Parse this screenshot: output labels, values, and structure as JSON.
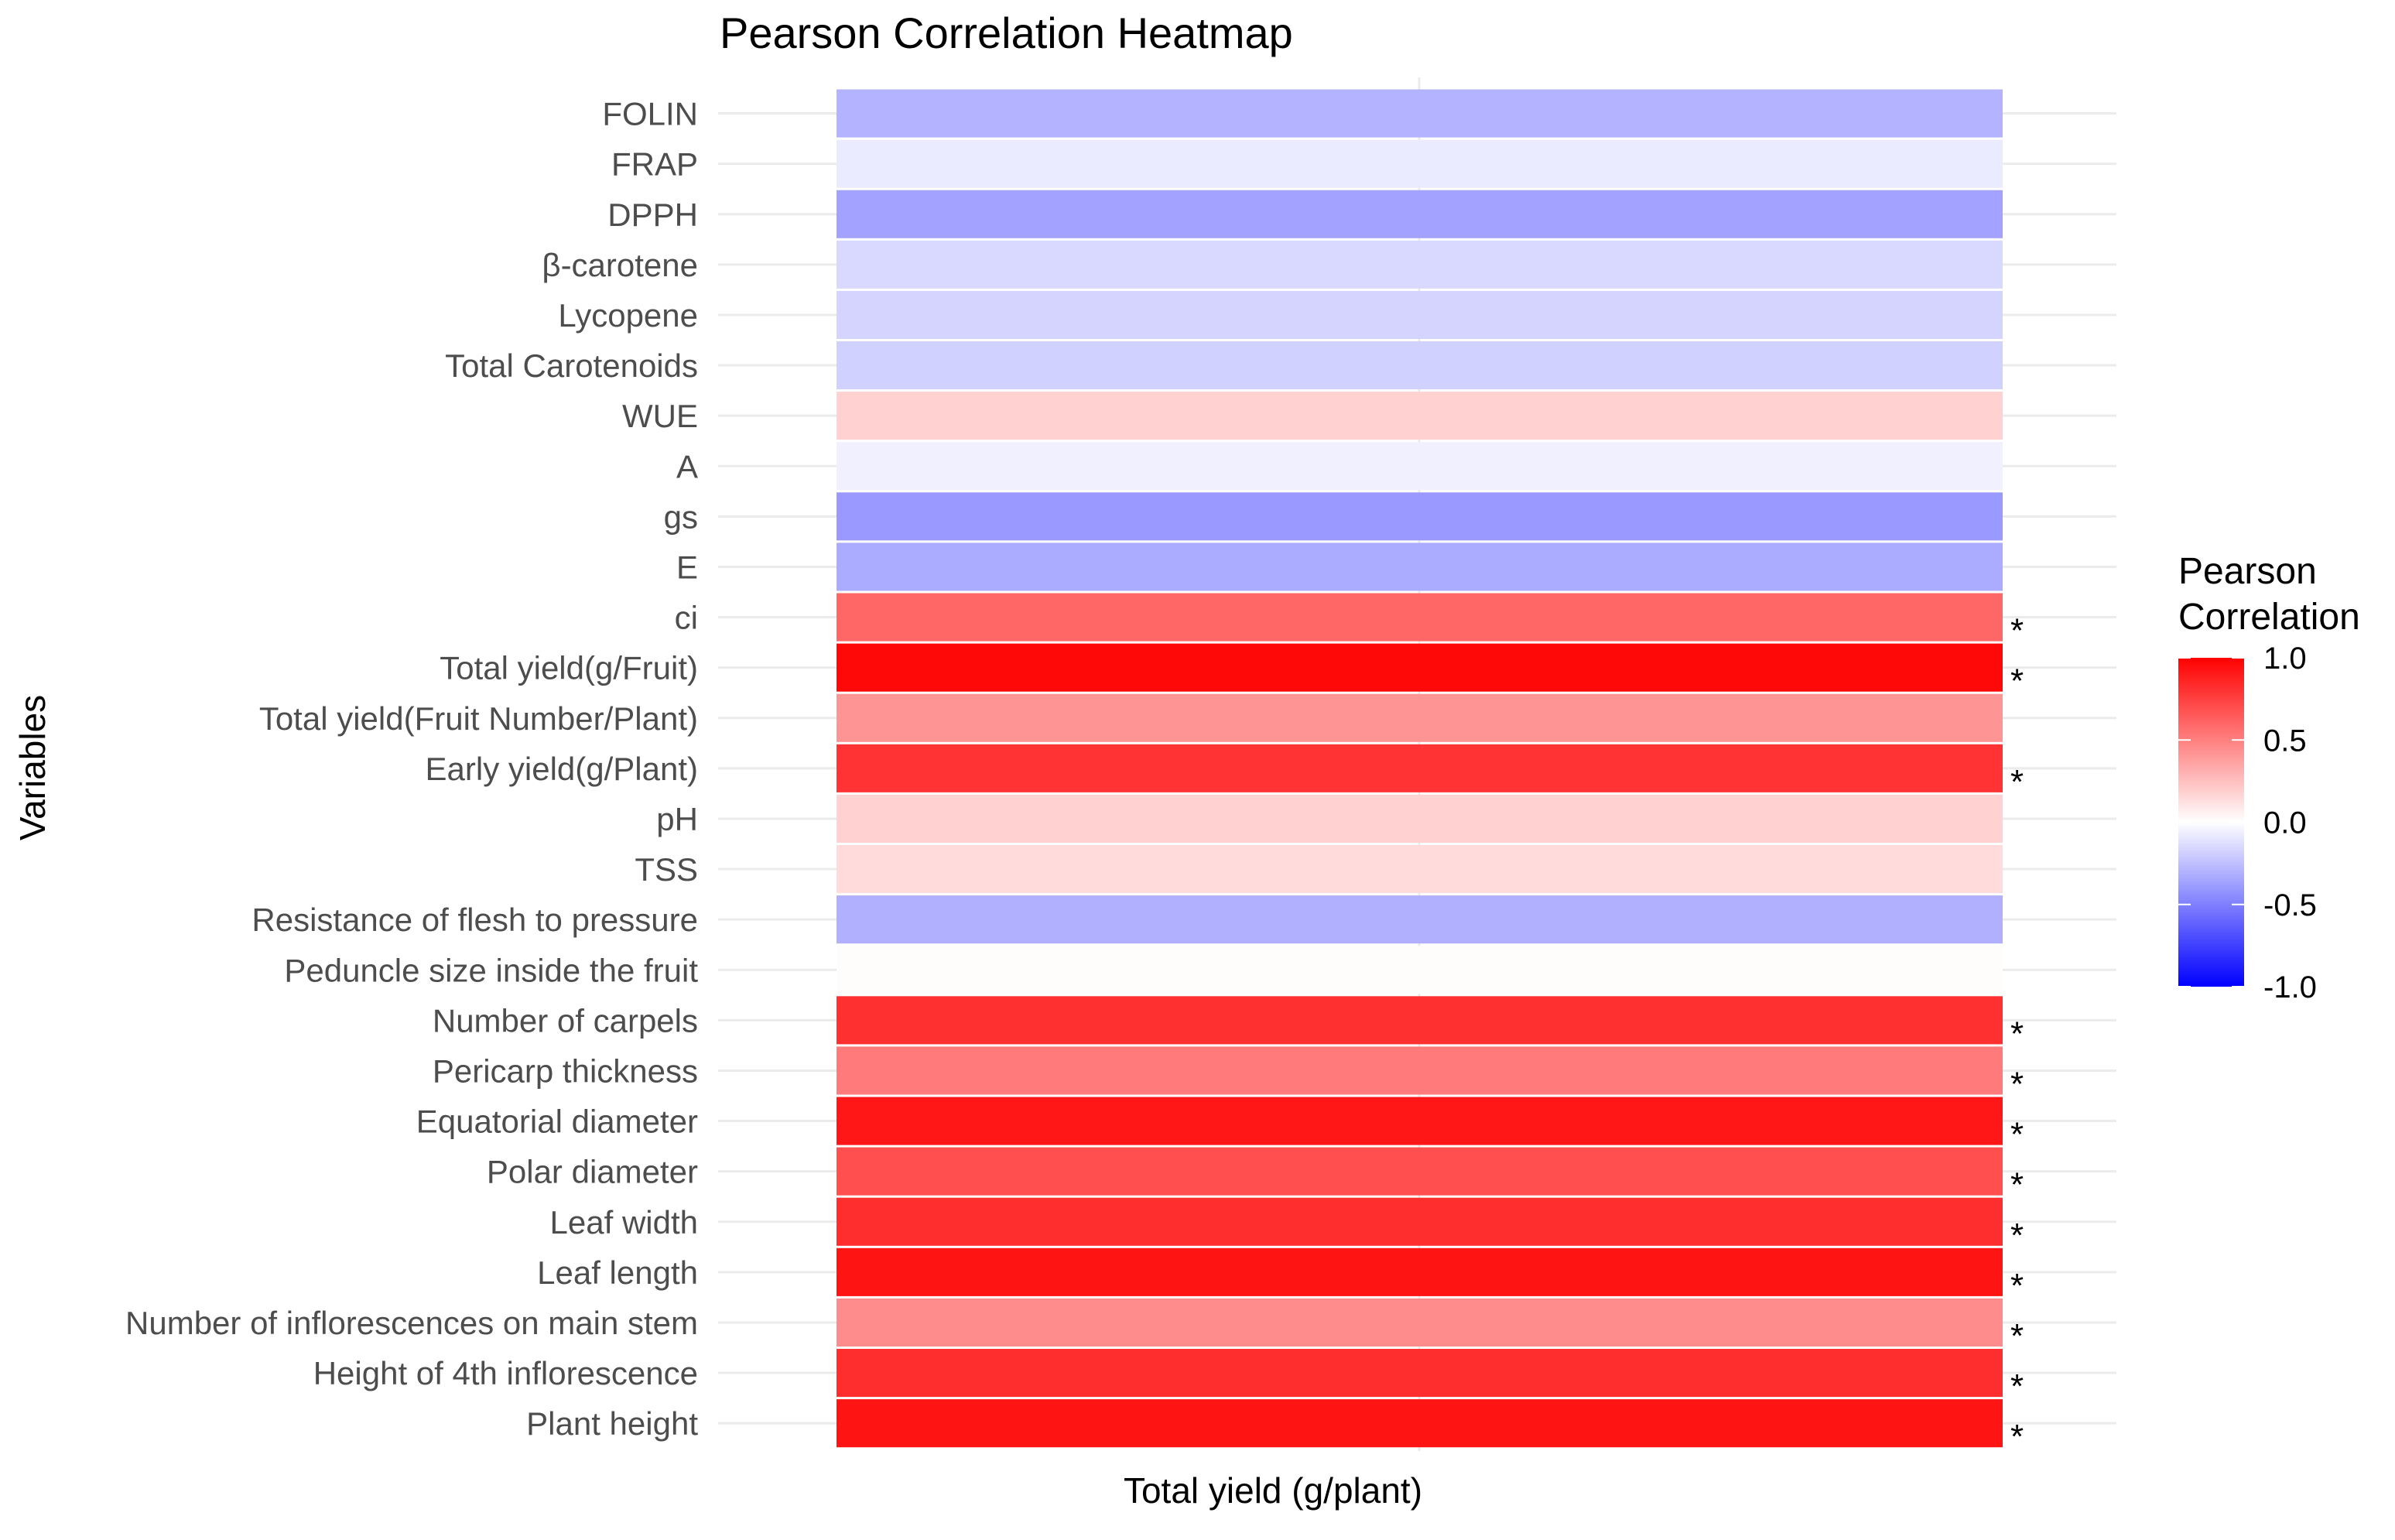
{
  "chart_data": {
    "type": "heatmap",
    "title": "Pearson Correlation Heatmap",
    "xlabel": "Total yield (g/plant)",
    "ylabel": "Variables",
    "x_categories": [
      "Total yield (g/plant)"
    ],
    "legend": {
      "title_lines": [
        "Pearson",
        "Correlation"
      ],
      "placement": "right",
      "range": [
        -1.0,
        1.0
      ],
      "ticks": [
        1.0,
        0.5,
        0.0,
        -0.5,
        -1.0
      ],
      "tick_labels": [
        "1.0",
        "0.5",
        "0.0",
        "-0.5",
        "-1.0"
      ],
      "colors": {
        "low": "#0000ff",
        "mid": "#ffffff",
        "high": "#ff0000"
      }
    },
    "significance_marker": "*",
    "rows": [
      {
        "label": "FOLIN",
        "value": -0.3,
        "significant": false
      },
      {
        "label": "FRAP",
        "value": -0.08,
        "significant": false
      },
      {
        "label": "DPPH",
        "value": -0.36,
        "significant": false
      },
      {
        "label": "β-carotene",
        "value": -0.15,
        "significant": false
      },
      {
        "label": "Lycopene",
        "value": -0.17,
        "significant": false
      },
      {
        "label": "Total Carotenoids",
        "value": -0.18,
        "significant": false
      },
      {
        "label": "WUE",
        "value": 0.18,
        "significant": false
      },
      {
        "label": "A",
        "value": -0.06,
        "significant": false
      },
      {
        "label": "gs",
        "value": -0.4,
        "significant": false
      },
      {
        "label": "E",
        "value": -0.33,
        "significant": false
      },
      {
        "label": "ci",
        "value": 0.6,
        "significant": true
      },
      {
        "label": "Total yield(g/Fruit)",
        "value": 0.97,
        "significant": true
      },
      {
        "label": "Total yield(Fruit Number/Plant)",
        "value": 0.42,
        "significant": false
      },
      {
        "label": "Early yield(g/Plant)",
        "value": 0.8,
        "significant": true
      },
      {
        "label": "pH",
        "value": 0.18,
        "significant": false
      },
      {
        "label": "TSS",
        "value": 0.14,
        "significant": false
      },
      {
        "label": "Resistance of flesh to pressure",
        "value": -0.31,
        "significant": false
      },
      {
        "label": "Peduncle size inside the fruit",
        "value": 0.01,
        "significant": false
      },
      {
        "label": "Number of carpels",
        "value": 0.81,
        "significant": true
      },
      {
        "label": "Pericarp thickness",
        "value": 0.52,
        "significant": true
      },
      {
        "label": "Equatorial diameter",
        "value": 0.91,
        "significant": true
      },
      {
        "label": "Polar diameter",
        "value": 0.69,
        "significant": true
      },
      {
        "label": "Leaf width",
        "value": 0.82,
        "significant": true
      },
      {
        "label": "Leaf length",
        "value": 0.92,
        "significant": true
      },
      {
        "label": "Number of inflorescences on main stem",
        "value": 0.45,
        "significant": true
      },
      {
        "label": "Height of 4th inflorescence",
        "value": 0.82,
        "significant": true
      },
      {
        "label": "Plant height",
        "value": 0.92,
        "significant": true
      }
    ]
  }
}
